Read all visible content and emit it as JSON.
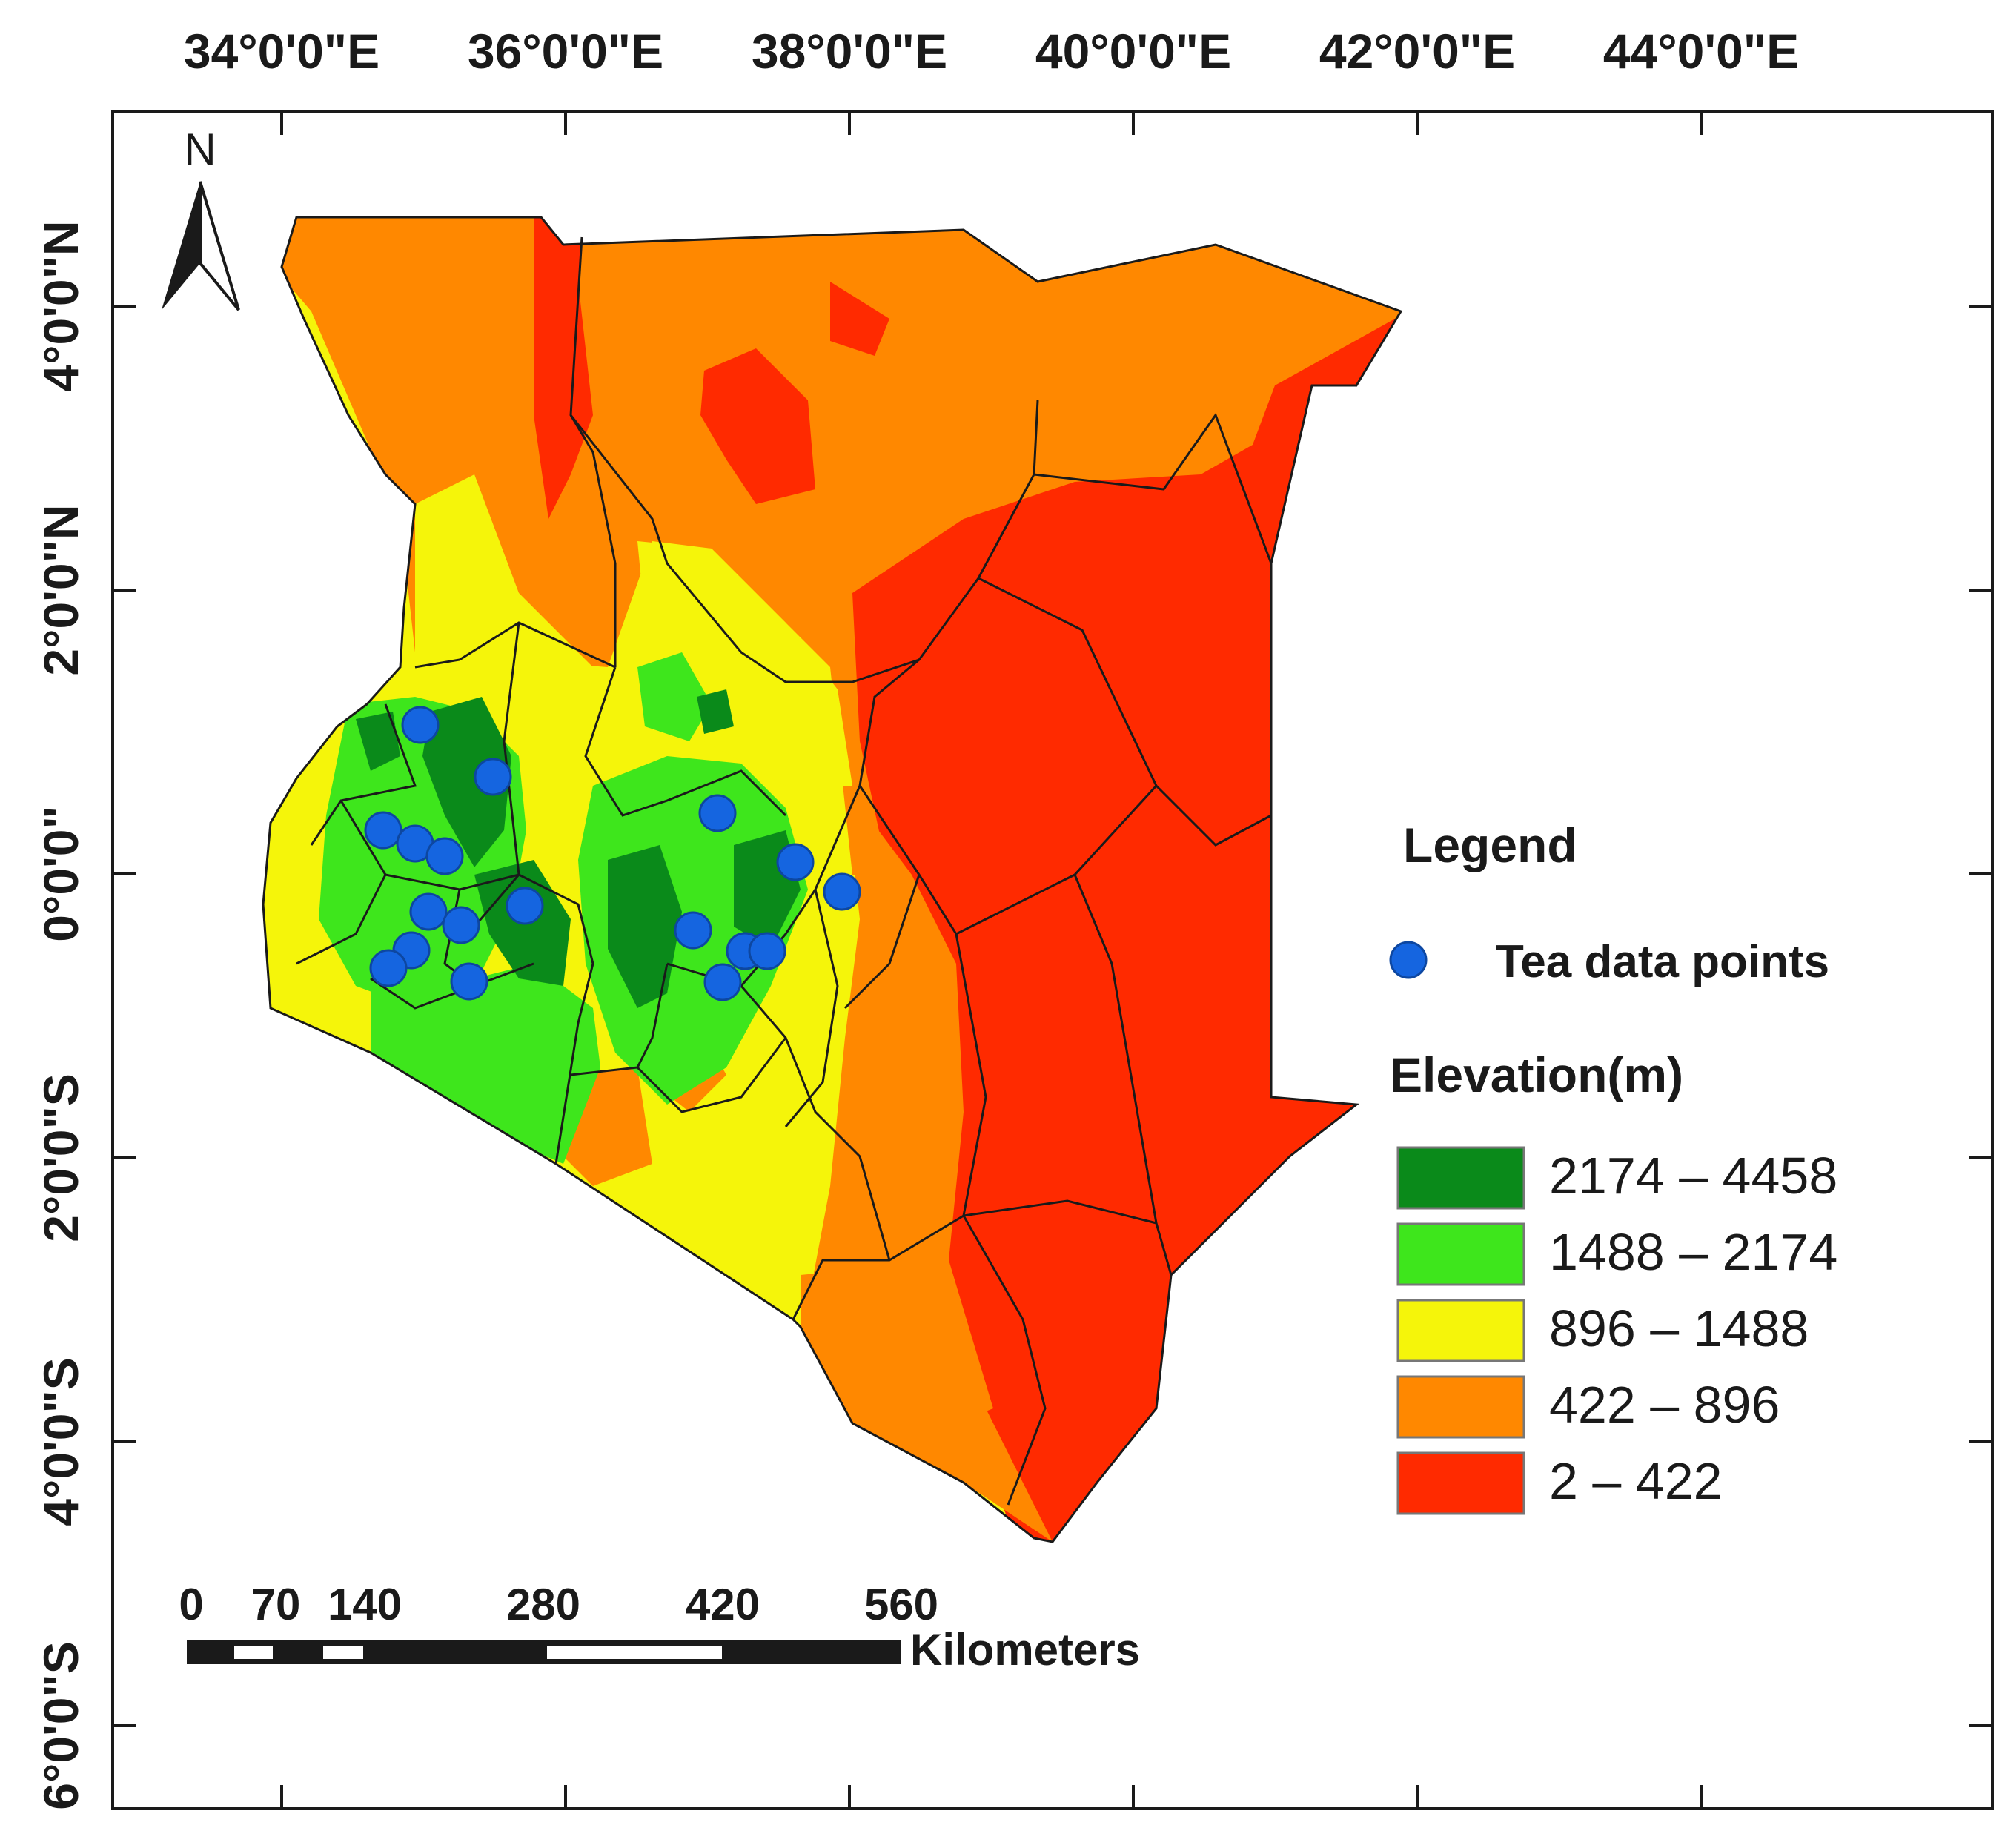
{
  "axes": {
    "top_ticks": [
      "34°0'0\"E",
      "36°0'0\"E",
      "38°0'0\"E",
      "40°0'0\"E",
      "42°0'0\"E",
      "44°0'0\"E"
    ],
    "left_ticks": [
      "4°0'0\"N",
      "2°0'0\"N",
      "0°0'0\"",
      "2°0'0\"S",
      "4°0'0\"S",
      "6°0'0\"S"
    ]
  },
  "north_arrow": {
    "label": "N",
    "icon": "north-arrow-icon"
  },
  "legend": {
    "title": "Legend",
    "points_label": "Tea data points",
    "points_color": "#1565e0",
    "elevation_title": "Elevation(m)",
    "classes": [
      {
        "label": "2174 – 4458",
        "color": "#0a8a1a"
      },
      {
        "label": "1488 – 2174",
        "color": "#3ee61c"
      },
      {
        "label": "896 – 1488",
        "color": "#f5f50a"
      },
      {
        "label": "422 – 896",
        "color": "#ff8800"
      },
      {
        "label": "2 – 422",
        "color": "#ff2a00"
      }
    ]
  },
  "scale_bar": {
    "ticks": [
      "0",
      "70",
      "140",
      "280",
      "420",
      "560"
    ],
    "unit": "Kilometers"
  },
  "tea_points_count": 18
}
